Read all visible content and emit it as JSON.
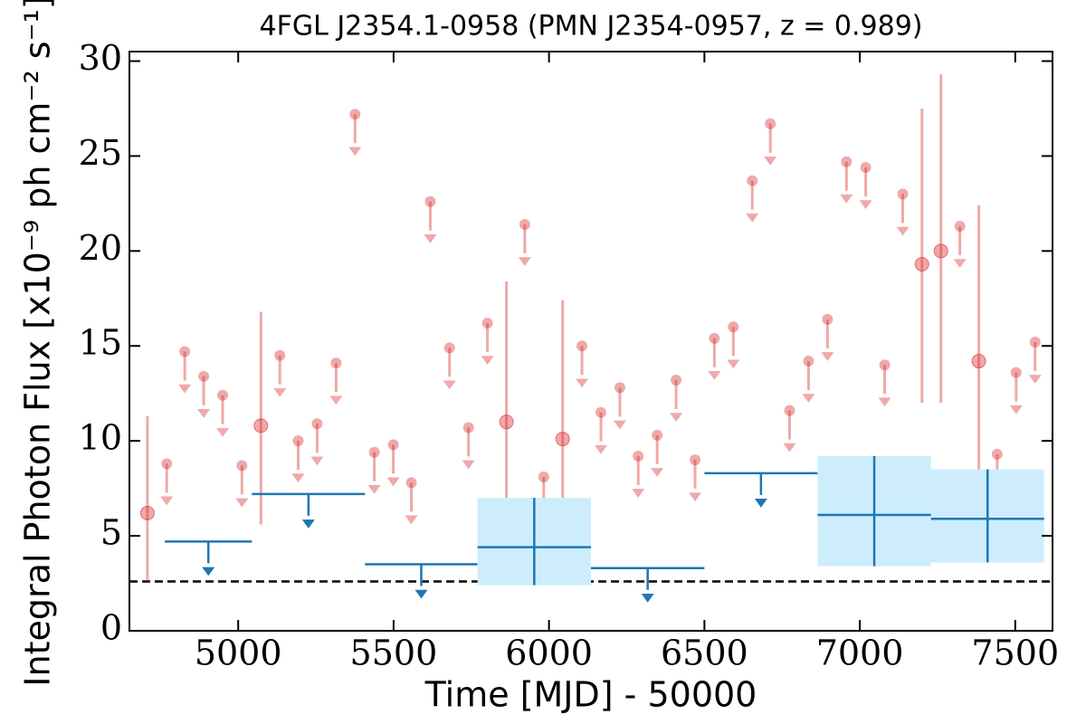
{
  "chart_data": {
    "type": "scatter",
    "title": "4FGL J2354.1-0958 (PMN J2354-0957, z = 0.989)",
    "xlabel": "Time [MJD] - 50000",
    "ylabel": "Integral Photon Flux [x10⁻⁹ ph cm⁻² s⁻¹]",
    "xlim": [
      4650,
      7620
    ],
    "ylim": [
      0,
      30.5
    ],
    "xticks": [
      5000,
      5500,
      6000,
      6500,
      7000,
      7500
    ],
    "yticks": [
      0,
      5,
      10,
      15,
      20,
      25,
      30
    ],
    "baseline": 2.6,
    "series": [
      {
        "kind": "upper_limit",
        "color": "#d62728",
        "alpha": 0.4,
        "x": [
          4770,
          4828,
          4889,
          4950,
          5012,
          5134,
          5193,
          5254,
          5315,
          5376,
          5438,
          5499,
          5557,
          5618,
          5680,
          5741,
          5802,
          5922,
          5983,
          6106,
          6167,
          6228,
          6287,
          6348,
          6409,
          6470,
          6532,
          6593,
          6654,
          6712,
          6774,
          6835,
          6896,
          6957,
          7019,
          7080,
          7138,
          7322,
          7442,
          7503,
          7564
        ],
        "values": [
          8.8,
          14.7,
          13.4,
          12.4,
          8.7,
          14.5,
          10.0,
          10.9,
          14.1,
          27.2,
          9.4,
          9.8,
          7.8,
          22.6,
          14.9,
          10.7,
          16.2,
          21.4,
          8.1,
          15.0,
          11.5,
          12.8,
          9.2,
          10.3,
          13.2,
          9.0,
          15.4,
          16.0,
          23.7,
          26.7,
          11.6,
          14.2,
          16.4,
          24.7,
          24.4,
          14.0,
          23.0,
          21.3,
          9.3,
          13.6,
          15.2
        ]
      },
      {
        "kind": "detection",
        "color": "#d62728",
        "alpha": 0.4,
        "x": [
          4708,
          5073,
          5863,
          6044,
          7200,
          7261,
          7383
        ],
        "values": [
          6.2,
          10.8,
          11.0,
          10.1,
          19.3,
          20.0,
          14.2
        ],
        "err_low": [
          2.6,
          5.6,
          5.0,
          4.3,
          12.0,
          12.0,
          7.1
        ],
        "err_high": [
          11.3,
          16.8,
          18.4,
          17.4,
          27.5,
          29.3,
          22.4
        ]
      },
      {
        "kind": "bin_upper_limit",
        "color": "#1f77b4",
        "x_start": [
          4764,
          5044,
          5408,
          6135,
          6500
        ],
        "x_end": [
          5044,
          5408,
          5770,
          6500,
          6864
        ],
        "values": [
          4.7,
          7.2,
          3.5,
          3.3,
          8.3
        ]
      },
      {
        "kind": "bin_detection",
        "color": "#1f77b4",
        "band_color": "#cdedfc",
        "x_start": [
          5770,
          6864,
          7229
        ],
        "x_end": [
          6135,
          7229,
          7593
        ],
        "values": [
          4.4,
          6.1,
          5.9
        ],
        "err_low": [
          2.4,
          3.4,
          3.6
        ],
        "err_high": [
          7.0,
          9.2,
          8.5
        ]
      }
    ]
  }
}
